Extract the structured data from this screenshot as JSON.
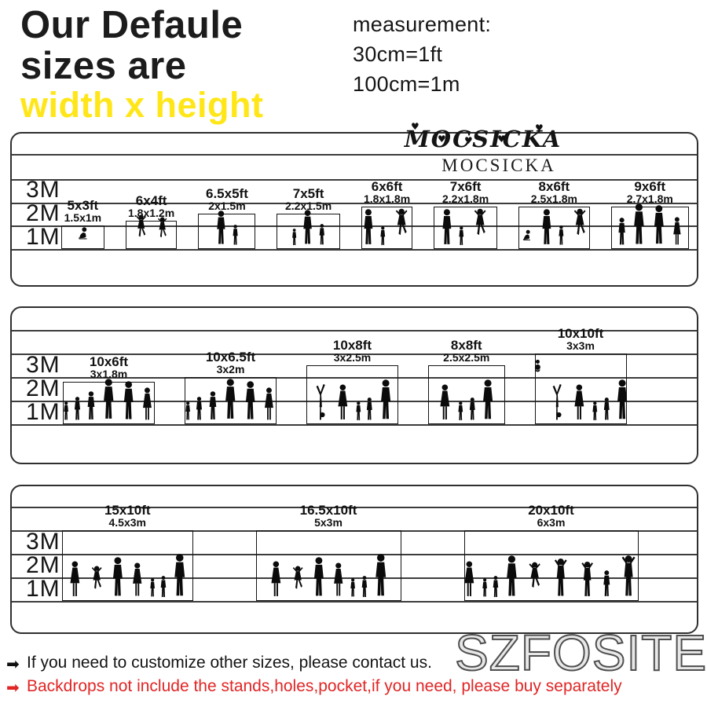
{
  "header": {
    "title_line1": "Our Defaule",
    "title_line2": "sizes are",
    "subtitle": "width x height",
    "measurement": {
      "label": "measurement:",
      "line1": "30cm=1ft",
      "line2": "100cm=1m"
    }
  },
  "brand": {
    "logo_script": "MOCSICKA",
    "logo_serif": "MOCSICKA"
  },
  "axis_labels": [
    "3M",
    "2M",
    "1M"
  ],
  "panels": [
    {
      "name": "small-sizes",
      "sizes": [
        {
          "ft": "5x3ft",
          "m": "1.5x1m",
          "width_m": 1.5,
          "height_m": 1.0
        },
        {
          "ft": "6x4ft",
          "m": "1.8x1.2m",
          "width_m": 1.8,
          "height_m": 1.2
        },
        {
          "ft": "6.5x5ft",
          "m": "2x1.5m",
          "width_m": 2.0,
          "height_m": 1.5
        },
        {
          "ft": "7x5ft",
          "m": "2.2x1.5m",
          "width_m": 2.2,
          "height_m": 1.5
        },
        {
          "ft": "6x6ft",
          "m": "1.8x1.8m",
          "width_m": 1.8,
          "height_m": 1.8
        },
        {
          "ft": "7x6ft",
          "m": "2.2x1.8m",
          "width_m": 2.2,
          "height_m": 1.8
        },
        {
          "ft": "8x6ft",
          "m": "2.5x1.8m",
          "width_m": 2.5,
          "height_m": 1.8
        },
        {
          "ft": "9x6ft",
          "m": "2.7x1.8m",
          "width_m": 2.7,
          "height_m": 1.8
        }
      ]
    },
    {
      "name": "medium-sizes",
      "sizes": [
        {
          "ft": "10x6ft",
          "m": "3x1.8m",
          "width_m": 3.0,
          "height_m": 1.8
        },
        {
          "ft": "10x6.5ft",
          "m": "3x2m",
          "width_m": 3.0,
          "height_m": 2.0
        },
        {
          "ft": "10x8ft",
          "m": "3x2.5m",
          "width_m": 3.0,
          "height_m": 2.5
        },
        {
          "ft": "8x8ft",
          "m": "2.5x2.5m",
          "width_m": 2.5,
          "height_m": 2.5
        },
        {
          "ft": "10x10ft",
          "m": "3x3m",
          "width_m": 3.0,
          "height_m": 3.0
        }
      ]
    },
    {
      "name": "large-sizes",
      "sizes": [
        {
          "ft": "15x10ft",
          "m": "4.5x3m",
          "width_m": 4.5,
          "height_m": 3.0
        },
        {
          "ft": "16.5x10ft",
          "m": "5x3m",
          "width_m": 5.0,
          "height_m": 3.0
        },
        {
          "ft": "20x10ft",
          "m": "6x3m",
          "width_m": 6.0,
          "height_m": 3.0
        }
      ]
    }
  ],
  "footer": {
    "note_black": "If you need to customize other sizes, please contact us.",
    "note_red": "Backdrops not include the stands,holes,pocket,if you need, please buy separately",
    "watermark": "SZFOSITE"
  },
  "icons": {
    "heart": "♥",
    "arrow": "➡"
  },
  "colors": {
    "ink": "#1a1a1a",
    "accent_yellow": "#ffe619",
    "alert_red": "#e02626",
    "watermark_gray": "#4f4f4f"
  }
}
